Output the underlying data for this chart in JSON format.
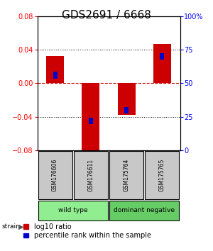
{
  "title": "GDS2691 / 6668",
  "samples": [
    "GSM176606",
    "GSM176611",
    "GSM175764",
    "GSM175765"
  ],
  "log10_ratio": [
    0.033,
    -0.085,
    -0.038,
    0.047
  ],
  "percentile_rank": [
    56,
    22,
    30,
    70
  ],
  "ylim_left": [
    -0.08,
    0.08
  ],
  "ylim_right": [
    0,
    100
  ],
  "yticks_left": [
    -0.08,
    -0.04,
    0,
    0.04,
    0.08
  ],
  "yticks_right": [
    0,
    25,
    50,
    75,
    100
  ],
  "groups": [
    {
      "label": "wild type",
      "samples": [
        0,
        1
      ],
      "color": "#90ee90"
    },
    {
      "label": "dominant negative",
      "samples": [
        2,
        3
      ],
      "color": "#66cc66"
    }
  ],
  "bar_color_red": "#cc0000",
  "bar_color_blue": "#0000cc",
  "red_bar_width": 0.5,
  "blue_bar_width": 0.12,
  "hline_zero_color": "#cc0000",
  "hline_grid_color": "#000000",
  "background_color": "#ffffff",
  "plot_bg_color": "#ffffff",
  "sample_box_color": "#c8c8c8",
  "title_fontsize": 11,
  "tick_fontsize": 7,
  "label_fontsize": 8,
  "legend_fontsize": 7
}
